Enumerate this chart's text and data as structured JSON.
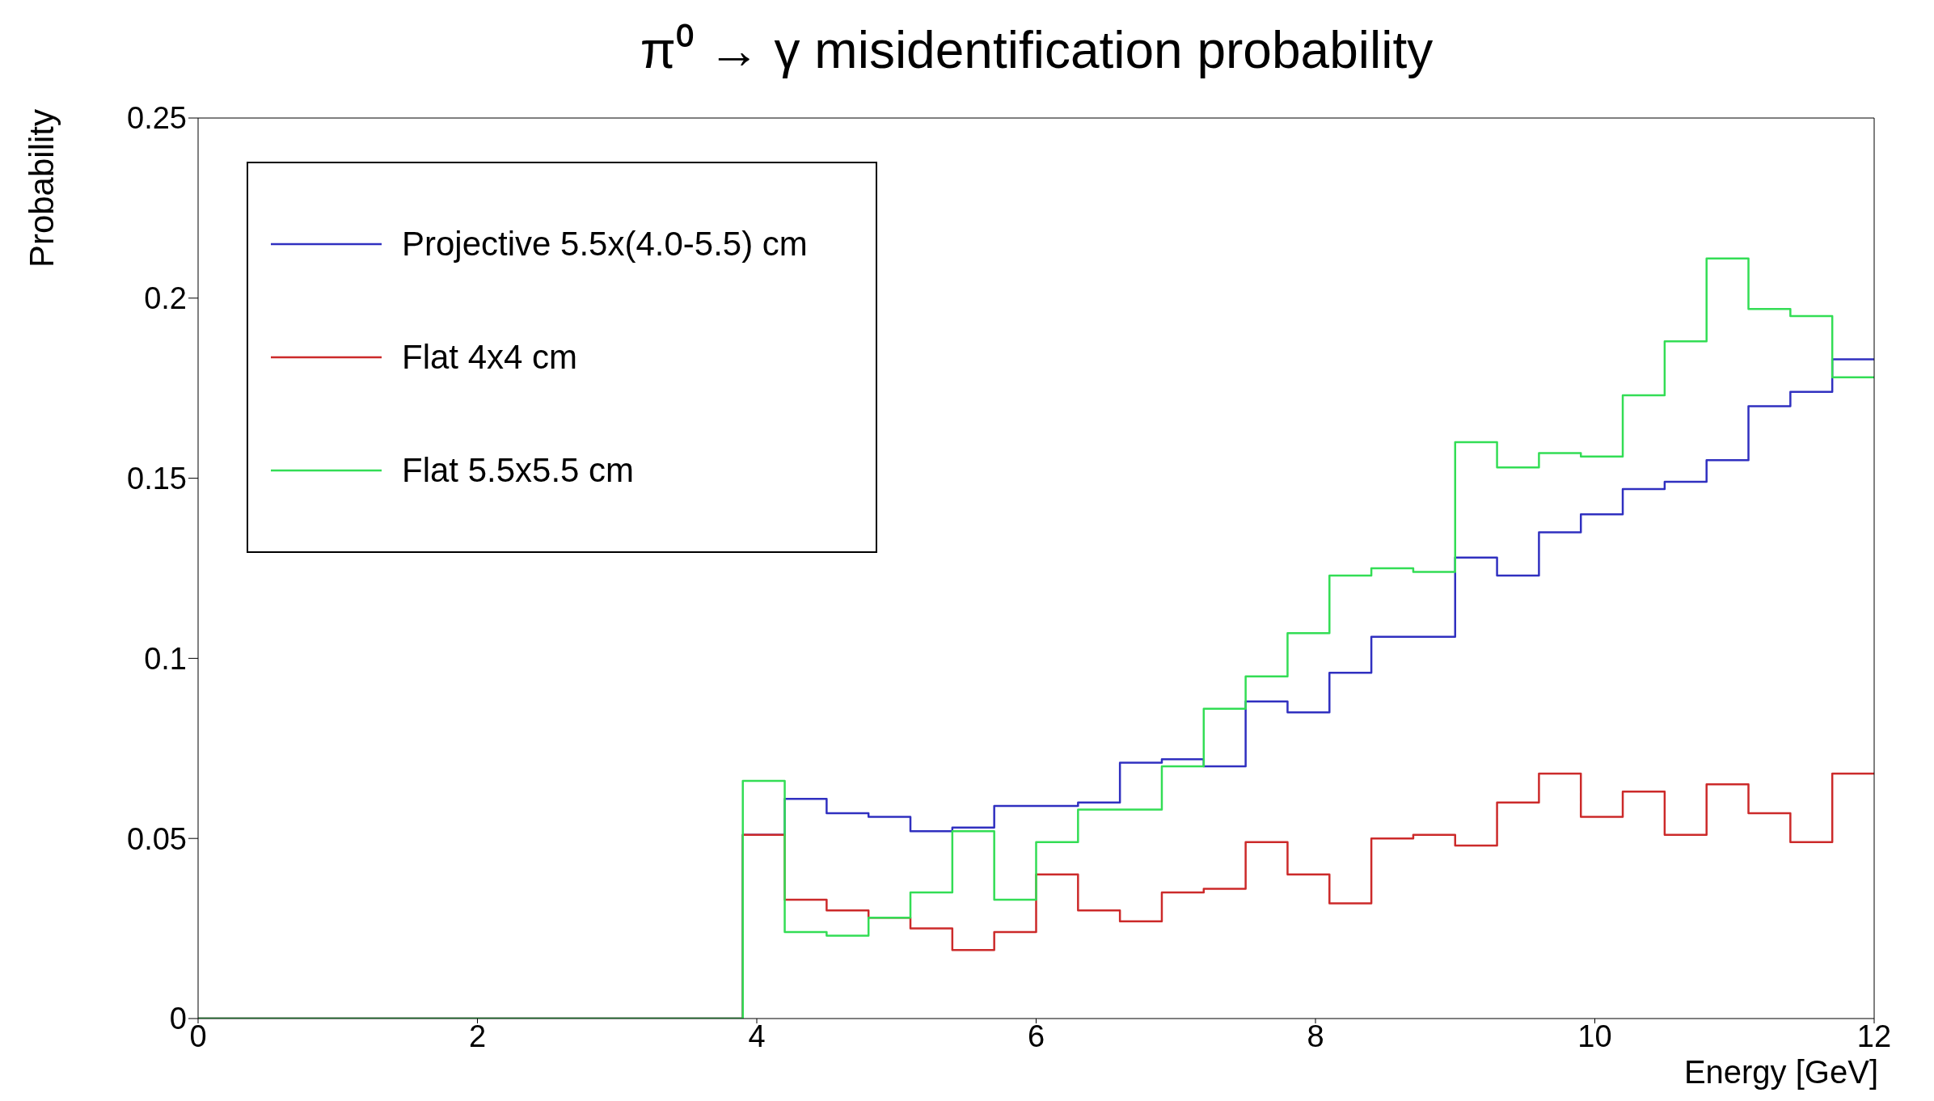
{
  "chart_data": {
    "type": "histogram",
    "title": "π⁰ → γ misidentification probability",
    "xlabel": "Energy [GeV]",
    "ylabel": "Probability",
    "bins": [
      0,
      0.3,
      0.6,
      0.9,
      1.2,
      1.5,
      1.8,
      2.1,
      2.4,
      2.7,
      3,
      3.3,
      3.6,
      3.9,
      4.2,
      4.5,
      4.8,
      5.1,
      5.4,
      5.7,
      6,
      6.3,
      6.6,
      6.9,
      7.2,
      7.5,
      7.8,
      8.1,
      8.4,
      8.7,
      9,
      9.3,
      9.6,
      9.9,
      10.2,
      10.5,
      10.8,
      11.1,
      11.4,
      11.7,
      12
    ],
    "series": [
      {
        "name": "Projective 5.5x(4.0-5.5) cm",
        "color": "#3030c0",
        "values": [
          0,
          0,
          0,
          0,
          0,
          0,
          0,
          0,
          0,
          0,
          0,
          0,
          0,
          0.051,
          0.061,
          0.057,
          0.056,
          0.052,
          0.053,
          0.059,
          0.059,
          0.06,
          0.071,
          0.072,
          0.07,
          0.088,
          0.085,
          0.096,
          0.106,
          0.106,
          0.128,
          0.123,
          0.135,
          0.14,
          0.147,
          0.149,
          0.155,
          0.17,
          0.174,
          0.183
        ]
      },
      {
        "name": "Flat 4x4 cm",
        "color": "#cc2a2a",
        "values": [
          0,
          0,
          0,
          0,
          0,
          0,
          0,
          0,
          0,
          0,
          0,
          0,
          0,
          0.051,
          0.033,
          0.03,
          0.028,
          0.025,
          0.019,
          0.024,
          0.04,
          0.03,
          0.027,
          0.035,
          0.036,
          0.049,
          0.04,
          0.032,
          0.05,
          0.051,
          0.048,
          0.06,
          0.068,
          0.056,
          0.063,
          0.051,
          0.065,
          0.057,
          0.049,
          0.068
        ]
      },
      {
        "name": "Flat 5.5x5.5 cm",
        "color": "#33dd55",
        "values": [
          0,
          0,
          0,
          0,
          0,
          0,
          0,
          0,
          0,
          0,
          0,
          0,
          0,
          0.066,
          0.024,
          0.023,
          0.028,
          0.035,
          0.052,
          0.033,
          0.049,
          0.058,
          0.058,
          0.07,
          0.086,
          0.095,
          0.107,
          0.123,
          0.125,
          0.124,
          0.16,
          0.153,
          0.157,
          0.156,
          0.173,
          0.188,
          0.211,
          0.197,
          0.195,
          0.178
        ]
      }
    ],
    "xlim": [
      0,
      12
    ],
    "xticks": [
      0,
      2,
      4,
      6,
      8,
      10,
      12
    ],
    "ylim": [
      0,
      0.25
    ],
    "yticks": [
      0,
      0.05,
      0.1,
      0.15,
      0.2,
      0.25
    ],
    "legend": "top left"
  }
}
